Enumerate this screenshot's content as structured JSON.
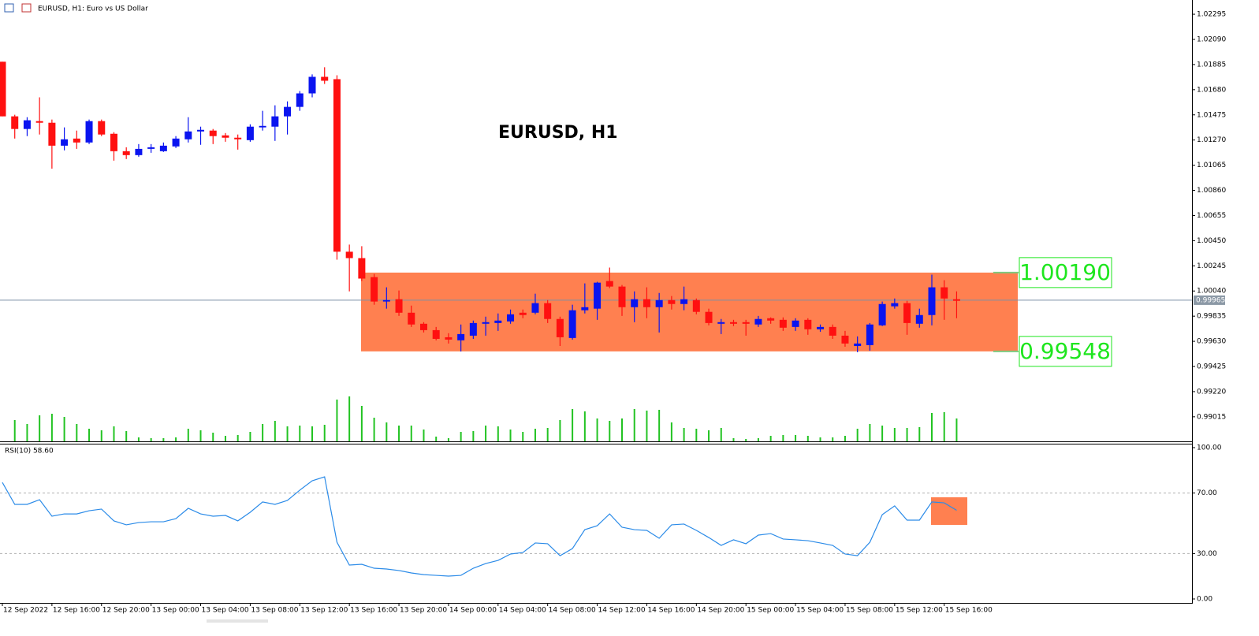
{
  "window_title": "EURUSD, H1:  Euro vs US Dollar",
  "chart_data": [
    {
      "type": "candlestick",
      "title": "EURUSD, H1",
      "categories": [
        "12 Sep 2022",
        null,
        null,
        null,
        "12 Sep 16:00",
        null,
        null,
        null,
        "12 Sep 20:00",
        null,
        null,
        null,
        "13 Sep 00:00",
        null,
        null,
        null,
        "13 Sep 04:00",
        null,
        null,
        null,
        "13 Sep 08:00",
        null,
        null,
        null,
        "13 Sep 12:00",
        null,
        null,
        null,
        "13 Sep 16:00",
        null,
        null,
        null,
        "13 Sep 20:00",
        null,
        null,
        null,
        "14 Sep 00:00",
        null,
        null,
        null,
        "14 Sep 04:00",
        null,
        null,
        null,
        "14 Sep 08:00",
        null,
        null,
        null,
        "14 Sep 12:00",
        null,
        null,
        null,
        "14 Sep 16:00",
        null,
        null,
        null,
        "14 Sep 20:00",
        null,
        null,
        null,
        "15 Sep 00:00",
        null,
        null,
        null,
        "15 Sep 04:00",
        null,
        null,
        null,
        "15 Sep 08:00",
        null,
        null,
        null,
        "15 Sep 12:00",
        null,
        null,
        null,
        "15 Sep 16:00",
        null
      ],
      "open": [
        1.01908,
        1.01463,
        1.0136,
        1.01424,
        1.01411,
        1.01224,
        1.01282,
        1.0125,
        1.01424,
        1.01321,
        1.01179,
        1.01147,
        1.01198,
        1.01179,
        1.01218,
        1.01276,
        1.0134,
        1.01347,
        1.01308,
        1.01289,
        1.01269,
        1.01373,
        1.01379,
        1.01463,
        1.0154,
        1.0165,
        1.01785,
        1.01766,
        1.0036,
        1.00308,
        1.00153,
        0.99954,
        0.99973,
        0.99863,
        0.99773,
        0.99721,
        0.99663,
        0.99638,
        0.99676,
        0.99773,
        0.99779,
        0.99792,
        0.99863,
        0.99863,
        0.99941,
        0.99812,
        0.99657,
        0.99883,
        0.99896,
        1.00121,
        1.00076,
        0.99908,
        0.99973,
        0.99908,
        0.99966,
        0.99934,
        0.99966,
        0.9987,
        0.99773,
        0.99786,
        0.99786,
        0.99767,
        0.99818,
        0.99805,
        0.99747,
        0.99805,
        0.99728,
        0.99747,
        0.99676,
        0.99592,
        0.99599,
        0.9976,
        0.99915,
        0.99941,
        0.99773,
        0.99844,
        1.0007,
        0.99973
      ],
      "high": [
        1.01908,
        1.01476,
        1.01456,
        1.01618,
        1.01437,
        1.01373,
        1.01347,
        1.01437,
        1.01437,
        1.01334,
        1.01211,
        1.01237,
        1.01237,
        1.0125,
        1.01302,
        1.01456,
        1.01379,
        1.0136,
        1.01327,
        1.01315,
        1.01398,
        1.01508,
        1.01553,
        1.01585,
        1.01669,
        1.01805,
        1.01863,
        1.01798,
        1.00418,
        1.00405,
        1.00179,
        1.0007,
        1.00044,
        0.99921,
        0.99786,
        0.99747,
        0.99696,
        0.99767,
        0.99799,
        0.99831,
        0.99857,
        0.99889,
        0.99889,
        1.00018,
        0.99966,
        0.99831,
        0.99928,
        1.00102,
        1.00115,
        1.00231,
        1.00089,
        1.00037,
        1.0007,
        1.00024,
        0.99999,
        1.00076,
        0.99979,
        0.99896,
        0.99812,
        0.99805,
        0.99805,
        0.99837,
        0.99825,
        0.99825,
        0.99818,
        0.99818,
        0.99767,
        0.99767,
        0.99715,
        0.9967,
        0.99779,
        0.99954,
        0.99979,
        0.9996,
        0.99896,
        1.00173,
        1.00128,
        1.00037
      ],
      "low": [
        1.01463,
        1.01282,
        1.01302,
        1.01315,
        1.01037,
        1.01186,
        1.01198,
        1.01237,
        1.01302,
        1.01102,
        1.01115,
        1.01134,
        1.01166,
        1.01173,
        1.01205,
        1.0125,
        1.01231,
        1.01237,
        1.01256,
        1.01192,
        1.01256,
        1.01347,
        1.01263,
        1.01315,
        1.01508,
        1.01618,
        1.01727,
        1.00295,
        1.00037,
        1.00121,
        0.99928,
        0.99896,
        0.99837,
        0.99747,
        0.99702,
        0.99638,
        0.99612,
        0.99547,
        0.9965,
        0.99676,
        0.99715,
        0.99773,
        0.99818,
        0.9985,
        0.99779,
        0.99592,
        0.99644,
        0.99857,
        0.99805,
        1.00063,
        0.99837,
        0.99786,
        0.99818,
        0.99702,
        0.99889,
        0.99883,
        0.9985,
        0.9976,
        0.99689,
        0.99754,
        0.99676,
        0.99747,
        0.99773,
        0.99715,
        0.99715,
        0.99683,
        0.99708,
        0.9965,
        0.99586,
        0.99541,
        0.99554,
        0.99754,
        0.99896,
        0.99683,
        0.99741,
        0.9976,
        0.99805,
        0.99818
      ],
      "close": [
        1.01463,
        1.0136,
        1.01431,
        1.01411,
        1.01224,
        1.01276,
        1.0125,
        1.01424,
        1.01315,
        1.01179,
        1.01147,
        1.01198,
        1.01211,
        1.01224,
        1.01282,
        1.0134,
        1.01353,
        1.01302,
        1.01289,
        1.01276,
        1.01379,
        1.01385,
        1.01463,
        1.0154,
        1.0165,
        1.01785,
        1.01753,
        1.0036,
        1.00308,
        1.00141,
        0.99954,
        0.99966,
        0.99863,
        0.99767,
        0.99721,
        0.9965,
        0.99644,
        0.99689,
        0.99779,
        0.99786,
        0.99799,
        0.9985,
        0.99844,
        0.99941,
        0.99812,
        0.99663,
        0.99883,
        0.99908,
        1.00108,
        1.00076,
        0.99908,
        0.99973,
        0.99908,
        0.99966,
        0.99934,
        0.99973,
        0.9987,
        0.99779,
        0.99786,
        0.99773,
        0.99773,
        0.99812,
        0.99799,
        0.99741,
        0.99799,
        0.99728,
        0.99747,
        0.99676,
        0.99612,
        0.99612,
        0.99767,
        0.99934,
        0.99941,
        0.99779,
        0.99844,
        1.0007,
        0.99979,
        0.9996
      ],
      "up_color": "#0a14f0",
      "down_color": "#ff1010",
      "volumes": [
        null,
        27,
        22,
        33,
        35,
        31,
        22,
        16,
        14,
        19,
        13,
        5,
        4,
        4,
        5,
        16,
        14,
        11,
        7,
        8,
        12,
        22,
        26,
        19,
        20,
        19,
        21,
        53,
        57,
        45,
        30,
        24,
        20,
        20,
        15,
        6,
        4,
        12,
        13,
        20,
        19,
        15,
        12,
        16,
        17,
        27,
        41,
        38,
        29,
        26,
        29,
        41,
        39,
        40,
        24,
        17,
        16,
        14,
        17,
        4,
        3,
        4,
        7,
        8,
        8,
        7,
        5,
        5,
        7,
        16,
        22,
        20,
        17,
        17,
        18,
        36,
        37,
        29
      ],
      "volume_color": "#22c322",
      "ylim": [
        0.98815,
        1.02411
      ],
      "yticks": [
        1.02295,
        {
          "value": 1.0209,
          "label": "1.02090"
        },
        1.01885,
        {
          "value": 1.0168,
          "label": "1.01680"
        },
        1.01475,
        {
          "value": 1.0127,
          "label": "1.01270"
        },
        1.01065,
        {
          "value": 1.0086,
          "label": "1.00860"
        },
        1.00655,
        {
          "value": 1.0045,
          "label": "1.00450"
        },
        1.00245,
        {
          "value": 1.0004,
          "label": "1.00040"
        },
        0.99835,
        {
          "value": 0.9963,
          "label": "0.99630"
        },
        0.99425,
        {
          "value": 0.9922,
          "label": "0.99220"
        },
        0.99015
      ],
      "current_price": 0.99965,
      "range_box": {
        "top": {
          "value": 1.0019,
          "label": "1.00190"
        },
        "bottom": 0.99548,
        "color": "#ff8050",
        "label_color": "#1ee61e"
      }
    },
    {
      "type": "line",
      "title": "RSI(10) 58.60",
      "values": [
        77,
        62.5,
        62.5,
        65.6,
        54.7,
        56.2,
        56.2,
        58.3,
        59.4,
        51.6,
        49,
        50.5,
        51,
        51,
        53.1,
        59.9,
        56.2,
        54.7,
        55.2,
        51.6,
        57.3,
        64.1,
        62.5,
        65.1,
        71.9,
        78.1,
        80.7,
        37.5,
        22.4,
        22.9,
        20.3,
        19.8,
        18.8,
        17.2,
        16.1,
        15.6,
        15.1,
        15.6,
        20.3,
        23.4,
        25.5,
        29.7,
        30.7,
        37,
        36.5,
        28.6,
        33.3,
        45.8,
        48.4,
        56.2,
        47.4,
        45.8,
        45.3,
        40.1,
        49,
        49.5,
        45.3,
        40.6,
        35.4,
        39.1,
        36.5,
        42.2,
        43.2,
        39.6,
        39.1,
        38.5,
        37,
        35.4,
        29.7,
        28.6,
        37.5,
        55.7,
        61.5,
        52.1,
        52.1,
        64.1,
        63.5,
        58.6
      ],
      "color": "#2b8be8",
      "ylim": [
        -2.6,
        102.6
      ],
      "yticks": [
        {
          "value": 100,
          "label": "100.00"
        },
        {
          "value": 70,
          "label": "70.00"
        },
        {
          "value": 30,
          "label": "30.00"
        },
        {
          "value": 0,
          "label": "0.00"
        }
      ],
      "levels": [
        70,
        30
      ],
      "highlight_color": "#ff8050"
    }
  ]
}
